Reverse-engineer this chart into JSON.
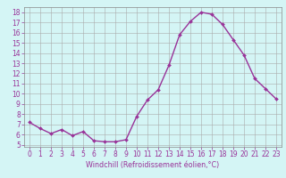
{
  "x": [
    0,
    1,
    2,
    3,
    4,
    5,
    6,
    7,
    8,
    9,
    10,
    11,
    12,
    13,
    14,
    15,
    16,
    17,
    18,
    19,
    20,
    21,
    22,
    23
  ],
  "y": [
    7.2,
    6.6,
    6.1,
    6.5,
    5.9,
    6.3,
    5.4,
    5.3,
    5.3,
    5.5,
    7.8,
    9.4,
    10.4,
    12.8,
    15.8,
    17.1,
    18.0,
    17.8,
    16.8,
    15.3,
    13.8,
    11.5,
    10.5,
    9.5
  ],
  "line_color": "#993399",
  "marker": "D",
  "marker_size": 2.0,
  "line_width": 1.0,
  "bg_color": "#d4f5f5",
  "grid_color": "#aaaaaa",
  "xlabel": "Windchill (Refroidissement éolien,°C)",
  "xlabel_color": "#993399",
  "tick_color": "#993399",
  "xlim": [
    -0.5,
    23.5
  ],
  "ylim": [
    4.8,
    18.5
  ],
  "yticks": [
    5,
    6,
    7,
    8,
    9,
    10,
    11,
    12,
    13,
    14,
    15,
    16,
    17,
    18
  ],
  "xticks": [
    0,
    1,
    2,
    3,
    4,
    5,
    6,
    7,
    8,
    9,
    10,
    11,
    12,
    13,
    14,
    15,
    16,
    17,
    18,
    19,
    20,
    21,
    22,
    23
  ],
  "label_fontsize": 5.8,
  "tick_fontsize": 5.5
}
